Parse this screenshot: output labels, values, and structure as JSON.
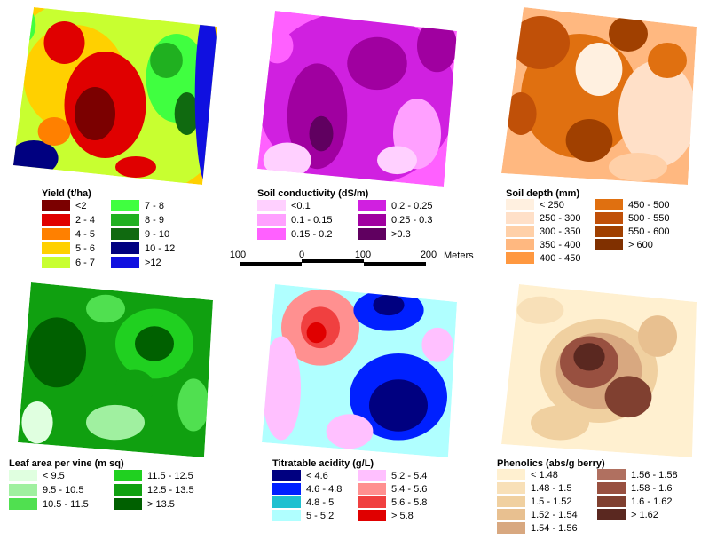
{
  "panels": [
    {
      "title": "Yield (t/ha)",
      "legend": [
        {
          "label": "<2",
          "color": "#7b0000"
        },
        {
          "label": "2 - 4",
          "color": "#e00000"
        },
        {
          "label": "4 - 5",
          "color": "#ff8000"
        },
        {
          "label": "5 - 6",
          "color": "#ffd000"
        },
        {
          "label": "6 - 7",
          "color": "#c8ff30"
        },
        {
          "label": "7 - 8",
          "color": "#40ff40"
        },
        {
          "label": "8 - 9",
          "color": "#20b020"
        },
        {
          "label": "9 - 10",
          "color": "#106a10"
        },
        {
          "label": "10 - 12",
          "color": "#000080"
        },
        {
          "label": ">12",
          "color": "#1010e0"
        }
      ]
    },
    {
      "title": "Soil conductivity (dS/m)",
      "legend": [
        {
          "label": "<0.1",
          "color": "#ffd0ff"
        },
        {
          "label": "0.1 - 0.15",
          "color": "#ffa0ff"
        },
        {
          "label": "0.15 - 0.2",
          "color": "#ff60ff"
        },
        {
          "label": "0.2 - 0.25",
          "color": "#d020e0"
        },
        {
          "label": "0.25 - 0.3",
          "color": "#a000a0"
        },
        {
          "label": ">0.3",
          "color": "#600060"
        }
      ]
    },
    {
      "title": "Soil depth (mm)",
      "legend": [
        {
          "label": "< 250",
          "color": "#fff0e0"
        },
        {
          "label": "250 - 300",
          "color": "#ffe0c8"
        },
        {
          "label": "300 - 350",
          "color": "#ffd0a8"
        },
        {
          "label": "350 - 400",
          "color": "#ffb880"
        },
        {
          "label": "400 - 450",
          "color": "#ff9840"
        },
        {
          "label": "450 - 500",
          "color": "#e07010"
        },
        {
          "label": "500 - 550",
          "color": "#c05008"
        },
        {
          "label": "550 - 600",
          "color": "#a04000"
        },
        {
          "label": "> 600",
          "color": "#803000"
        }
      ]
    },
    {
      "title": "Leaf area per vine (m sq)",
      "legend": [
        {
          "label": "< 9.5",
          "color": "#e0ffe0"
        },
        {
          "label": "9.5 - 10.5",
          "color": "#a0f0a0"
        },
        {
          "label": "10.5 - 11.5",
          "color": "#50e050"
        },
        {
          "label": "11.5 - 12.5",
          "color": "#20d020"
        },
        {
          "label": "12.5 - 13.5",
          "color": "#10a010"
        },
        {
          "label": "> 13.5",
          "color": "#006000"
        }
      ]
    },
    {
      "title": "Titratable acidity (g/L)",
      "legend": [
        {
          "label": "< 4.6",
          "color": "#000080"
        },
        {
          "label": "4.6 - 4.8",
          "color": "#0020ff"
        },
        {
          "label": "4.8 - 5",
          "color": "#20c0d0"
        },
        {
          "label": "5 - 5.2",
          "color": "#b0ffff"
        },
        {
          "label": "5.2 - 5.4",
          "color": "#ffc0ff"
        },
        {
          "label": "5.4 - 5.6",
          "color": "#ff9090"
        },
        {
          "label": "5.6 - 5.8",
          "color": "#f04040"
        },
        {
          "label": "> 5.8",
          "color": "#e00000"
        }
      ]
    },
    {
      "title": "Phenolics (abs/g berry)",
      "legend": [
        {
          "label": "< 1.48",
          "color": "#fff0d0"
        },
        {
          "label": "1.48 - 1.5",
          "color": "#f8e0b8"
        },
        {
          "label": "1.5 - 1.52",
          "color": "#f0d0a0"
        },
        {
          "label": "1.52 - 1.54",
          "color": "#e8c090"
        },
        {
          "label": "1.54 - 1.56",
          "color": "#d8a880"
        },
        {
          "label": "1.56 - 1.58",
          "color": "#b07060"
        },
        {
          "label": "1.58 - 1.6",
          "color": "#985040"
        },
        {
          "label": "1.6 - 1.62",
          "color": "#804030"
        },
        {
          "label": "> 1.62",
          "color": "#5a2820"
        }
      ]
    }
  ],
  "scale_bar": {
    "labels": [
      "100",
      "0",
      "100",
      "200"
    ],
    "unit": "Meters"
  }
}
